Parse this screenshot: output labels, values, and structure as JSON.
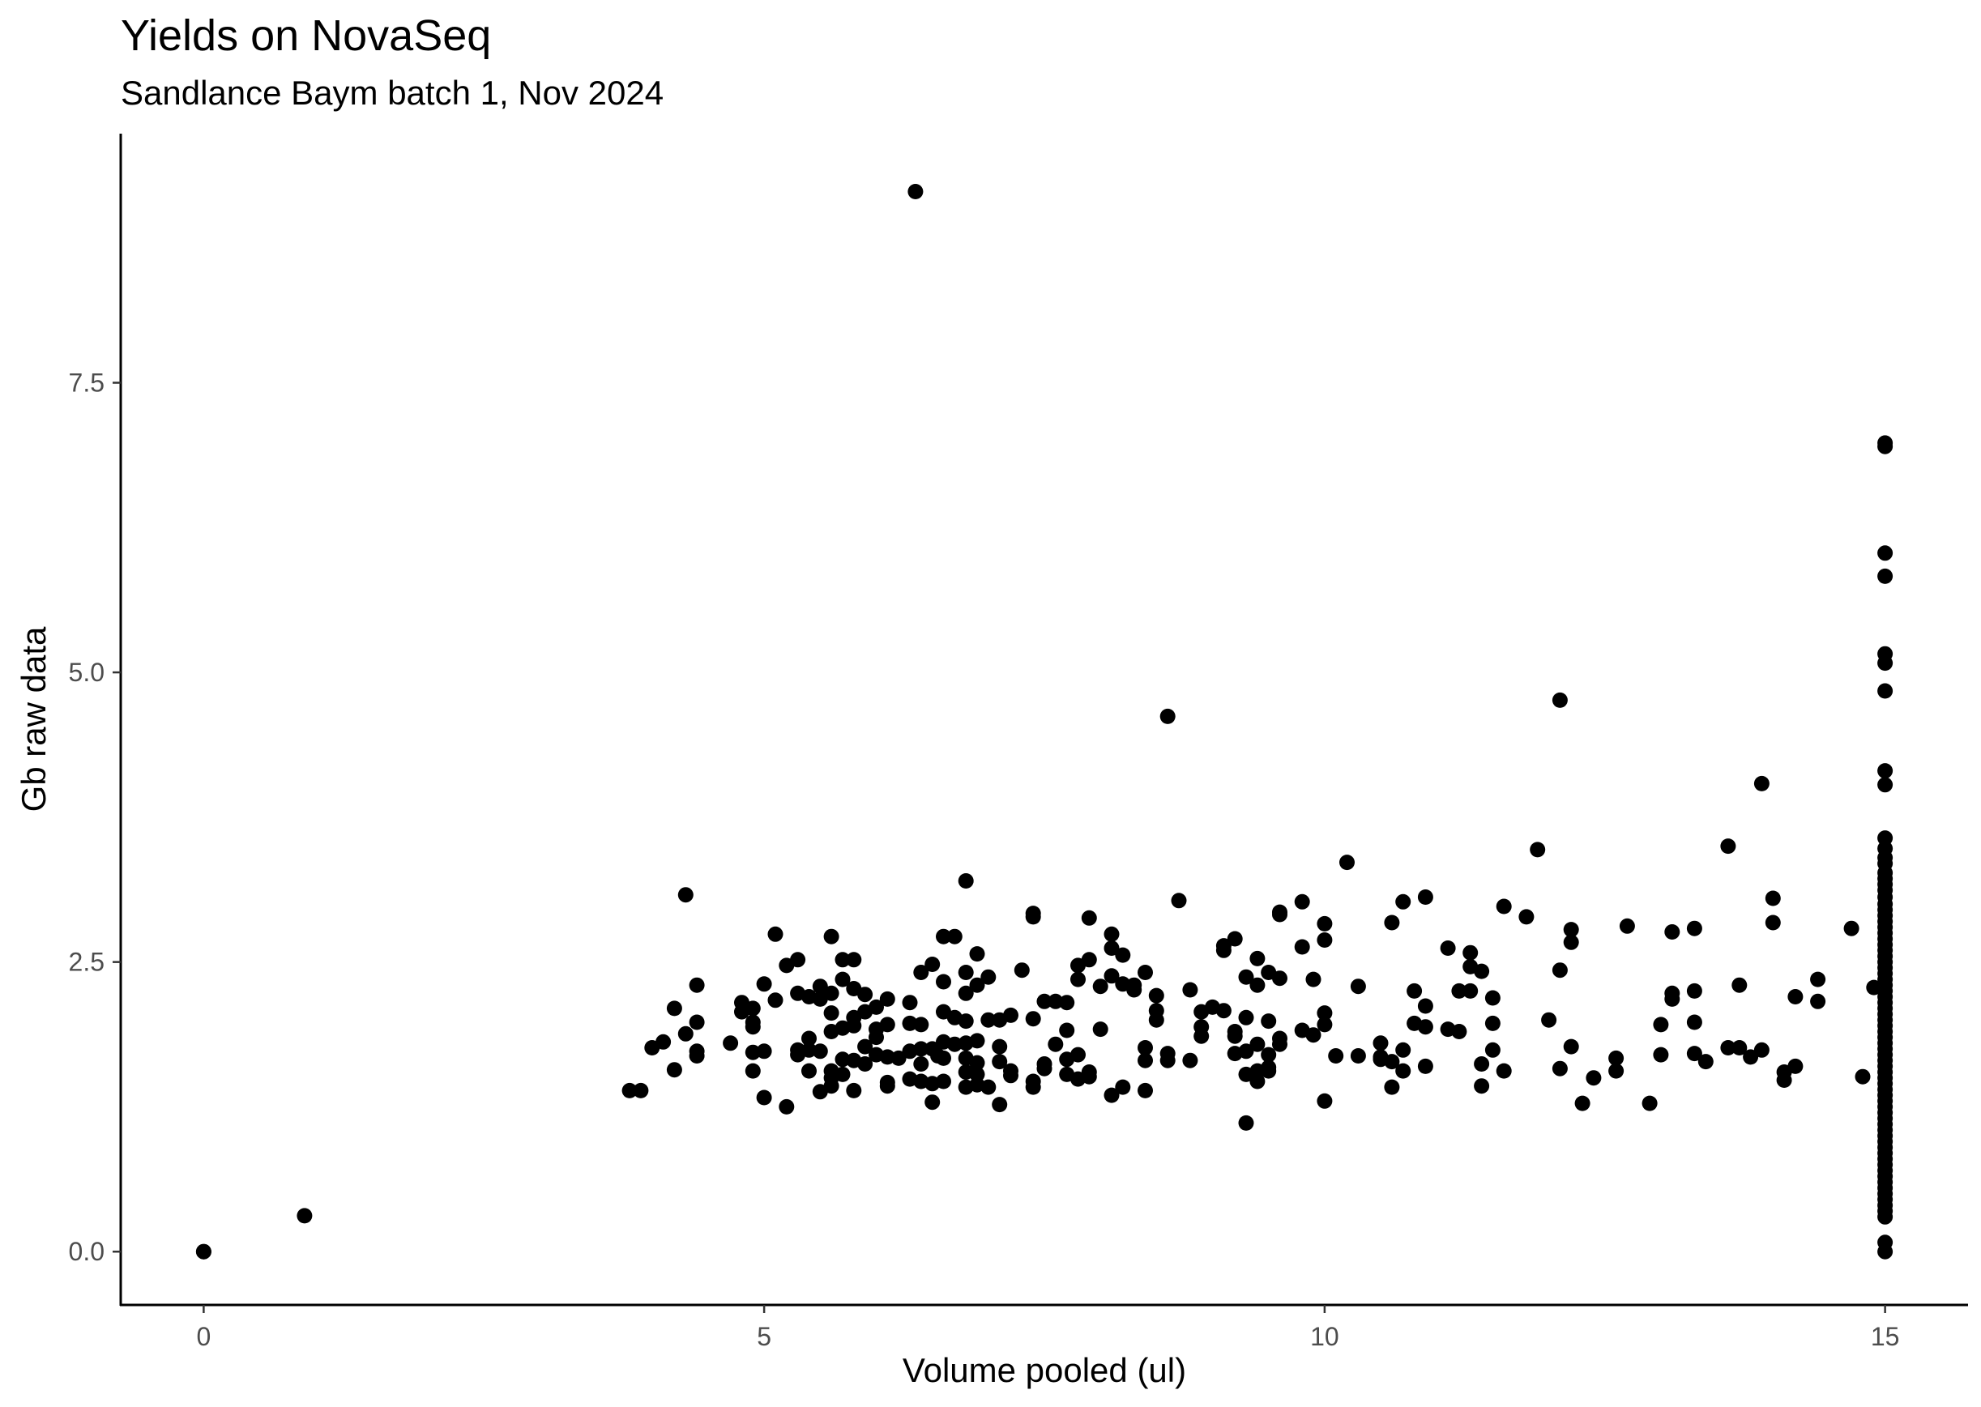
{
  "chart_data": {
    "type": "scatter",
    "title": "Yields on NovaSeq",
    "subtitle": "Sandlance Baym batch 1, Nov 2024",
    "xlabel": "Volume pooled (ul)",
    "ylabel": "Gb raw data",
    "xlim": [
      -0.74,
      15.74
    ],
    "ylim": [
      -0.46,
      9.65
    ],
    "xticks": [
      {
        "value": 0,
        "label": "0"
      },
      {
        "value": 5,
        "label": "5"
      },
      {
        "value": 10,
        "label": "10"
      },
      {
        "value": 15,
        "label": "15"
      }
    ],
    "yticks": [
      {
        "value": 0,
        "label": "0.0"
      },
      {
        "value": 2.5,
        "label": "2.5"
      },
      {
        "value": 5,
        "label": "5.0"
      },
      {
        "value": 7.5,
        "label": "7.5"
      }
    ],
    "grid": false,
    "point_color": "#000000",
    "points": [
      [
        0,
        0
      ],
      [
        0,
        0
      ],
      [
        0.9,
        0.31
      ],
      [
        3.8,
        1.39
      ],
      [
        3.9,
        1.39
      ],
      [
        4.0,
        1.76
      ],
      [
        4.1,
        1.81
      ],
      [
        4.2,
        2.1
      ],
      [
        4.2,
        1.57
      ],
      [
        4.3,
        1.88
      ],
      [
        4.3,
        3.08
      ],
      [
        4.4,
        1.98
      ],
      [
        4.4,
        1.69
      ],
      [
        4.4,
        2.3
      ],
      [
        4.4,
        1.73
      ],
      [
        4.7,
        1.8
      ],
      [
        4.8,
        2.15
      ],
      [
        4.8,
        2.07
      ],
      [
        4.9,
        2.1
      ],
      [
        4.9,
        1.98
      ],
      [
        4.9,
        1.72
      ],
      [
        4.9,
        1.56
      ],
      [
        4.9,
        1.94
      ],
      [
        5.0,
        1.73
      ],
      [
        5.0,
        2.31
      ],
      [
        5.0,
        1.33
      ],
      [
        5.1,
        2.74
      ],
      [
        5.1,
        2.17
      ],
      [
        5.2,
        2.47
      ],
      [
        5.2,
        1.25
      ],
      [
        5.3,
        2.52
      ],
      [
        5.3,
        2.23
      ],
      [
        5.3,
        1.74
      ],
      [
        5.3,
        1.7
      ],
      [
        5.4,
        1.84
      ],
      [
        5.4,
        1.56
      ],
      [
        5.4,
        2.2
      ],
      [
        5.4,
        1.74
      ],
      [
        5.5,
        2.29
      ],
      [
        5.5,
        2.18
      ],
      [
        5.5,
        1.73
      ],
      [
        5.5,
        1.38
      ],
      [
        5.6,
        2.72
      ],
      [
        5.6,
        2.23
      ],
      [
        5.6,
        2.06
      ],
      [
        5.6,
        1.9
      ],
      [
        5.6,
        1.56
      ],
      [
        5.6,
        1.5
      ],
      [
        5.6,
        1.43
      ],
      [
        5.7,
        2.52
      ],
      [
        5.7,
        2.35
      ],
      [
        5.7,
        1.93
      ],
      [
        5.7,
        1.66
      ],
      [
        5.7,
        1.53
      ],
      [
        5.8,
        2.52
      ],
      [
        5.8,
        2.27
      ],
      [
        5.8,
        2.02
      ],
      [
        5.8,
        1.95
      ],
      [
        5.8,
        1.65
      ],
      [
        5.8,
        1.39
      ],
      [
        5.9,
        2.22
      ],
      [
        5.9,
        2.07
      ],
      [
        5.9,
        1.77
      ],
      [
        5.9,
        1.62
      ],
      [
        6.0,
        2.11
      ],
      [
        6.0,
        1.92
      ],
      [
        6.0,
        1.85
      ],
      [
        6.0,
        1.7
      ],
      [
        6.1,
        2.18
      ],
      [
        6.1,
        1.96
      ],
      [
        6.1,
        1.68
      ],
      [
        6.1,
        1.46
      ],
      [
        6.1,
        1.43
      ],
      [
        6.2,
        1.67
      ],
      [
        6.3,
        2.15
      ],
      [
        6.3,
        1.97
      ],
      [
        6.3,
        1.73
      ],
      [
        6.3,
        1.49
      ],
      [
        6.35,
        9.15
      ],
      [
        6.4,
        2.41
      ],
      [
        6.4,
        1.96
      ],
      [
        6.4,
        1.75
      ],
      [
        6.4,
        1.62
      ],
      [
        6.4,
        1.47
      ],
      [
        6.5,
        2.48
      ],
      [
        6.5,
        1.75
      ],
      [
        6.5,
        1.45
      ],
      [
        6.5,
        1.29
      ],
      [
        6.55,
        1.69
      ],
      [
        6.6,
        2.72
      ],
      [
        6.6,
        2.33
      ],
      [
        6.6,
        2.07
      ],
      [
        6.6,
        1.81
      ],
      [
        6.6,
        1.67
      ],
      [
        6.6,
        1.47
      ],
      [
        6.7,
        2.72
      ],
      [
        6.7,
        2.02
      ],
      [
        6.7,
        1.79
      ],
      [
        6.8,
        3.2
      ],
      [
        6.8,
        2.41
      ],
      [
        6.8,
        2.23
      ],
      [
        6.8,
        1.99
      ],
      [
        6.8,
        1.8
      ],
      [
        6.8,
        1.67
      ],
      [
        6.8,
        1.55
      ],
      [
        6.8,
        1.42
      ],
      [
        6.9,
        2.57
      ],
      [
        6.9,
        2.3
      ],
      [
        6.9,
        1.82
      ],
      [
        6.9,
        1.63
      ],
      [
        6.9,
        1.53
      ],
      [
        6.9,
        1.44
      ],
      [
        7.0,
        2.37
      ],
      [
        7.0,
        2.0
      ],
      [
        7.0,
        1.42
      ],
      [
        7.1,
        2.0
      ],
      [
        7.1,
        1.77
      ],
      [
        7.1,
        1.64
      ],
      [
        7.1,
        1.27
      ],
      [
        7.2,
        2.04
      ],
      [
        7.2,
        1.56
      ],
      [
        7.2,
        1.52
      ],
      [
        7.3,
        2.43
      ],
      [
        7.4,
        2.92
      ],
      [
        7.4,
        2.89
      ],
      [
        7.4,
        2.01
      ],
      [
        7.4,
        1.47
      ],
      [
        7.4,
        1.42
      ],
      [
        7.5,
        2.16
      ],
      [
        7.5,
        1.62
      ],
      [
        7.5,
        1.58
      ],
      [
        7.6,
        2.16
      ],
      [
        7.6,
        1.79
      ],
      [
        7.7,
        2.15
      ],
      [
        7.7,
        1.91
      ],
      [
        7.7,
        1.66
      ],
      [
        7.7,
        1.53
      ],
      [
        7.8,
        2.47
      ],
      [
        7.8,
        2.35
      ],
      [
        7.8,
        1.7
      ],
      [
        7.8,
        1.49
      ],
      [
        7.9,
        2.88
      ],
      [
        7.9,
        2.52
      ],
      [
        7.9,
        1.55
      ],
      [
        7.9,
        1.51
      ],
      [
        8.0,
        2.29
      ],
      [
        8.0,
        1.92
      ],
      [
        8.1,
        2.74
      ],
      [
        8.1,
        2.62
      ],
      [
        8.1,
        2.38
      ],
      [
        8.1,
        1.35
      ],
      [
        8.2,
        2.56
      ],
      [
        8.2,
        2.31
      ],
      [
        8.2,
        1.42
      ],
      [
        8.3,
        2.3
      ],
      [
        8.3,
        2.26
      ],
      [
        8.4,
        2.41
      ],
      [
        8.4,
        1.76
      ],
      [
        8.4,
        1.65
      ],
      [
        8.4,
        1.39
      ],
      [
        8.5,
        2.21
      ],
      [
        8.5,
        2.08
      ],
      [
        8.5,
        2.0
      ],
      [
        8.6,
        4.62
      ],
      [
        8.6,
        1.71
      ],
      [
        8.6,
        1.65
      ],
      [
        8.7,
        3.03
      ],
      [
        8.8,
        2.26
      ],
      [
        8.8,
        1.65
      ],
      [
        8.9,
        2.07
      ],
      [
        8.9,
        1.94
      ],
      [
        8.9,
        1.86
      ],
      [
        9.0,
        2.11
      ],
      [
        9.1,
        2.08
      ],
      [
        9.1,
        2.6
      ],
      [
        9.1,
        2.64
      ],
      [
        9.2,
        2.7
      ],
      [
        9.2,
        1.9
      ],
      [
        9.2,
        1.86
      ],
      [
        9.2,
        1.71
      ],
      [
        9.3,
        2.37
      ],
      [
        9.3,
        2.02
      ],
      [
        9.3,
        1.73
      ],
      [
        9.3,
        1.53
      ],
      [
        9.3,
        1.11
      ],
      [
        9.4,
        2.53
      ],
      [
        9.4,
        2.3
      ],
      [
        9.4,
        1.79
      ],
      [
        9.4,
        1.56
      ],
      [
        9.4,
        1.47
      ],
      [
        9.5,
        2.41
      ],
      [
        9.5,
        1.99
      ],
      [
        9.5,
        1.7
      ],
      [
        9.5,
        1.59
      ],
      [
        9.5,
        1.56
      ],
      [
        9.6,
        2.93
      ],
      [
        9.6,
        2.91
      ],
      [
        9.6,
        2.36
      ],
      [
        9.6,
        1.84
      ],
      [
        9.6,
        1.79
      ],
      [
        9.8,
        3.02
      ],
      [
        9.8,
        2.63
      ],
      [
        9.8,
        1.91
      ],
      [
        9.9,
        2.35
      ],
      [
        9.9,
        1.87
      ],
      [
        10.0,
        2.83
      ],
      [
        10.0,
        2.69
      ],
      [
        10.0,
        2.06
      ],
      [
        10.0,
        1.96
      ],
      [
        10.0,
        1.3
      ],
      [
        10.1,
        1.69
      ],
      [
        10.2,
        3.36
      ],
      [
        10.3,
        2.29
      ],
      [
        10.3,
        1.69
      ],
      [
        10.5,
        1.8
      ],
      [
        10.5,
        1.68
      ],
      [
        10.5,
        1.66
      ],
      [
        10.6,
        2.84
      ],
      [
        10.6,
        1.64
      ],
      [
        10.6,
        1.42
      ],
      [
        10.7,
        3.02
      ],
      [
        10.7,
        1.74
      ],
      [
        10.7,
        1.56
      ],
      [
        10.8,
        2.25
      ],
      [
        10.8,
        1.97
      ],
      [
        10.9,
        3.06
      ],
      [
        10.9,
        2.12
      ],
      [
        10.9,
        1.94
      ],
      [
        10.9,
        1.6
      ],
      [
        11.1,
        2.62
      ],
      [
        11.1,
        1.92
      ],
      [
        11.2,
        2.25
      ],
      [
        11.2,
        1.9
      ],
      [
        11.3,
        2.58
      ],
      [
        11.3,
        2.46
      ],
      [
        11.3,
        2.25
      ],
      [
        11.4,
        2.42
      ],
      [
        11.4,
        1.62
      ],
      [
        11.4,
        1.43
      ],
      [
        11.5,
        2.19
      ],
      [
        11.5,
        1.97
      ],
      [
        11.5,
        1.74
      ],
      [
        11.6,
        2.98
      ],
      [
        11.6,
        1.56
      ],
      [
        11.8,
        2.89
      ],
      [
        11.9,
        3.47
      ],
      [
        12.0,
        2.0
      ],
      [
        12.1,
        4.76
      ],
      [
        12.1,
        2.43
      ],
      [
        12.1,
        1.58
      ],
      [
        12.2,
        2.78
      ],
      [
        12.2,
        2.67
      ],
      [
        12.2,
        1.77
      ],
      [
        12.3,
        1.28
      ],
      [
        12.4,
        1.5
      ],
      [
        12.6,
        1.67
      ],
      [
        12.6,
        1.56
      ],
      [
        12.7,
        2.81
      ],
      [
        12.9,
        1.28
      ],
      [
        13.0,
        1.96
      ],
      [
        13.0,
        1.7
      ],
      [
        13.1,
        2.76
      ],
      [
        13.1,
        2.23
      ],
      [
        13.1,
        2.18
      ],
      [
        13.3,
        2.79
      ],
      [
        13.3,
        2.25
      ],
      [
        13.3,
        1.98
      ],
      [
        13.3,
        1.71
      ],
      [
        13.4,
        1.64
      ],
      [
        13.6,
        3.5
      ],
      [
        13.6,
        1.76
      ],
      [
        13.7,
        2.3
      ],
      [
        13.7,
        1.76
      ],
      [
        13.8,
        1.68
      ],
      [
        13.9,
        4.04
      ],
      [
        13.9,
        1.74
      ],
      [
        14.0,
        3.05
      ],
      [
        14.0,
        2.84
      ],
      [
        14.1,
        1.55
      ],
      [
        14.1,
        1.48
      ],
      [
        14.2,
        2.2
      ],
      [
        14.2,
        1.6
      ],
      [
        14.4,
        2.35
      ],
      [
        14.4,
        2.16
      ],
      [
        14.7,
        2.79
      ],
      [
        14.8,
        1.51
      ],
      [
        14.9,
        2.28
      ],
      [
        15,
        6.98
      ],
      [
        15,
        6.95
      ],
      [
        15,
        6.03
      ],
      [
        15,
        5.83
      ],
      [
        15,
        5.16
      ],
      [
        15,
        5.08
      ],
      [
        15,
        4.84
      ],
      [
        15,
        4.15
      ],
      [
        15,
        4.03
      ],
      [
        15,
        3.57
      ],
      [
        15,
        3.48
      ],
      [
        15,
        3.4
      ],
      [
        15,
        3.35
      ],
      [
        15,
        3.27
      ],
      [
        15,
        3.22
      ],
      [
        15,
        3.17
      ],
      [
        15,
        3.12
      ],
      [
        15,
        3.06
      ],
      [
        15,
        3.0
      ],
      [
        15,
        2.95
      ],
      [
        15,
        2.9
      ],
      [
        15,
        2.85
      ],
      [
        15,
        2.8
      ],
      [
        15,
        2.75
      ],
      [
        15,
        2.7
      ],
      [
        15,
        2.65
      ],
      [
        15,
        2.6
      ],
      [
        15,
        2.55
      ],
      [
        15,
        2.5
      ],
      [
        15,
        2.45
      ],
      [
        15,
        2.4
      ],
      [
        15,
        2.35
      ],
      [
        15,
        2.3
      ],
      [
        15,
        2.25
      ],
      [
        15,
        2.2
      ],
      [
        15,
        2.15
      ],
      [
        15,
        2.1
      ],
      [
        15,
        2.05
      ],
      [
        15,
        2.0
      ],
      [
        15,
        1.95
      ],
      [
        15,
        1.9
      ],
      [
        15,
        1.85
      ],
      [
        15,
        1.8
      ],
      [
        15,
        1.75
      ],
      [
        15,
        1.7
      ],
      [
        15,
        1.65
      ],
      [
        15,
        1.6
      ],
      [
        15,
        1.55
      ],
      [
        15,
        1.5
      ],
      [
        15,
        1.45
      ],
      [
        15,
        1.4
      ],
      [
        15,
        1.35
      ],
      [
        15,
        1.3
      ],
      [
        15,
        1.25
      ],
      [
        15,
        1.2
      ],
      [
        15,
        1.15
      ],
      [
        15,
        1.1
      ],
      [
        15,
        1.05
      ],
      [
        15,
        1.0
      ],
      [
        15,
        0.95
      ],
      [
        15,
        0.9
      ],
      [
        15,
        0.85
      ],
      [
        15,
        0.8
      ],
      [
        15,
        0.75
      ],
      [
        15,
        0.7
      ],
      [
        15,
        0.65
      ],
      [
        15,
        0.6
      ],
      [
        15,
        0.55
      ],
      [
        15,
        0.5
      ],
      [
        15,
        0.45
      ],
      [
        15,
        0.4
      ],
      [
        15,
        0.35
      ],
      [
        15,
        0.3
      ],
      [
        15,
        0.08
      ],
      [
        15,
        0.0
      ]
    ]
  }
}
